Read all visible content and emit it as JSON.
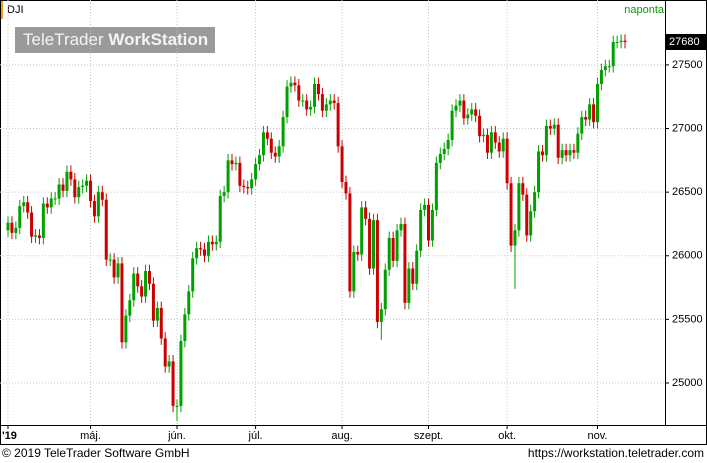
{
  "chart_data": {
    "type": "candlestick",
    "title": "DJI",
    "subtitle": "naponta",
    "watermark": {
      "brand": "TeleTrader",
      "product": "WorkStation"
    },
    "last_price": 27680,
    "up_color": "#00a000",
    "down_color": "#cc0000",
    "grid": true,
    "y_axis_side": "right",
    "ylim": [
      24670,
      28010
    ],
    "yticks": [
      25000,
      25500,
      26000,
      26500,
      27000,
      27500
    ],
    "categories": [
      "'19",
      null,
      null,
      null,
      null,
      null,
      null,
      null,
      null,
      null,
      null,
      null,
      null,
      null,
      null,
      null,
      null,
      null,
      null,
      null,
      null,
      "máj.",
      null,
      null,
      null,
      null,
      null,
      null,
      null,
      null,
      null,
      null,
      null,
      null,
      null,
      null,
      null,
      null,
      null,
      null,
      null,
      null,
      null,
      "jún.",
      null,
      null,
      null,
      null,
      null,
      null,
      null,
      null,
      null,
      null,
      null,
      null,
      null,
      null,
      null,
      null,
      null,
      null,
      null,
      "júl.",
      null,
      null,
      null,
      null,
      null,
      null,
      null,
      null,
      null,
      null,
      null,
      null,
      null,
      null,
      null,
      null,
      null,
      null,
      null,
      null,
      null,
      "aug.",
      null,
      null,
      null,
      null,
      null,
      null,
      null,
      null,
      null,
      null,
      null,
      null,
      null,
      null,
      null,
      null,
      null,
      null,
      null,
      null,
      null,
      "szept.",
      null,
      null,
      null,
      null,
      null,
      null,
      null,
      null,
      null,
      null,
      null,
      null,
      null,
      null,
      null,
      null,
      null,
      null,
      null,
      "okt.",
      null,
      null,
      null,
      null,
      null,
      null,
      null,
      null,
      null,
      null,
      null,
      null,
      null,
      null,
      null,
      null,
      null,
      null,
      null,
      null,
      null,
      null,
      "nov.",
      null,
      null,
      null,
      null,
      null,
      null,
      null
    ],
    "open": [
      26200,
      26260,
      26180,
      26220,
      26390,
      26420,
      26340,
      26150,
      26160,
      26140,
      26410,
      26380,
      26450,
      26450,
      26560,
      26510,
      26660,
      26600,
      26460,
      26540,
      26550,
      26590,
      26430,
      26310,
      26500,
      26440,
      25970,
      25970,
      25830,
      25940,
      25320,
      25530,
      25650,
      25860,
      25760,
      25680,
      25880,
      25780,
      25490,
      25590,
      25350,
      25130,
      25170,
      24820,
      24820,
      25330,
      25540,
      25720,
      25980,
      26060,
      26050,
      26000,
      26110,
      26090,
      26110,
      26470,
      26500,
      26750,
      26720,
      26730,
      26550,
      26540,
      26530,
      26600,
      26720,
      26790,
      26970,
      26920,
      26810,
      26780,
      26860,
      27090,
      27330,
      27360,
      27340,
      27220,
      27220,
      27150,
      27170,
      27350,
      27270,
      27140,
      27190,
      27220,
      27200,
      26860,
      26580,
      26490,
      25720,
      26030,
      26010,
      26380,
      26290,
      25900,
      26280,
      25480,
      25580,
      25890,
      26140,
      25960,
      26200,
      26250,
      25630,
      25900,
      25780,
      26040,
      26360,
      26400,
      26120,
      26360,
      26730,
      26800,
      26840,
      26910,
      27140,
      27180,
      27220,
      27080,
      27110,
      27150,
      27100,
      26940,
      26950,
      26810,
      26970,
      26890,
      26820,
      26920,
      26570,
      26080,
      26200,
      26570,
      26480,
      26160,
      26350,
      26500,
      26820,
      26790,
      27020,
      27000,
      27030,
      26770,
      26830,
      26790,
      26830,
      26810,
      26960,
      27090,
      27070,
      27190,
      27050,
      27350,
      27460,
      27490,
      27490,
      27680,
      27680,
      27690
    ],
    "high": [
      26310,
      26310,
      26270,
      26440,
      26470,
      26470,
      26390,
      26210,
      26210,
      26460,
      26460,
      26500,
      26500,
      26610,
      26610,
      26710,
      26710,
      26650,
      26590,
      26600,
      26640,
      26640,
      26480,
      26550,
      26550,
      26490,
      26020,
      26020,
      25990,
      25990,
      25580,
      25700,
      25910,
      25910,
      25810,
      25930,
      25930,
      25830,
      25640,
      25640,
      25400,
      25220,
      25220,
      24870,
      25380,
      25590,
      25770,
      26030,
      26110,
      26110,
      26100,
      26160,
      26160,
      26160,
      26520,
      26550,
      26800,
      26800,
      26780,
      26780,
      26600,
      26590,
      26650,
      26770,
      26840,
      27020,
      27020,
      26970,
      26860,
      26910,
      27140,
      27380,
      27410,
      27410,
      27390,
      27270,
      27270,
      27220,
      27400,
      27400,
      27320,
      27240,
      27270,
      27270,
      27250,
      26910,
      26630,
      26540,
      26080,
      26080,
      26430,
      26430,
      26340,
      26330,
      26330,
      25630,
      25940,
      26190,
      26190,
      26250,
      26300,
      26300,
      25950,
      25950,
      26090,
      26410,
      26450,
      26450,
      26410,
      26780,
      26850,
      26890,
      26960,
      27190,
      27230,
      27270,
      27270,
      27160,
      27200,
      27200,
      27150,
      27000,
      27000,
      27020,
      27020,
      26940,
      26970,
      26970,
      26620,
      26250,
      26620,
      26620,
      26530,
      26400,
      26550,
      26870,
      26870,
      27070,
      27070,
      27080,
      27080,
      26880,
      26880,
      26880,
      26880,
      27010,
      27140,
      27140,
      27240,
      27240,
      27400,
      27510,
      27540,
      27540,
      27730,
      27730,
      27740,
      27740
    ],
    "low": [
      26150,
      26130,
      26130,
      26170,
      26340,
      26290,
      26100,
      26100,
      26090,
      26090,
      26330,
      26330,
      26400,
      26400,
      26460,
      26460,
      26550,
      26410,
      26410,
      26490,
      26500,
      26380,
      26260,
      26260,
      26390,
      25920,
      25920,
      25780,
      25780,
      25270,
      25270,
      25480,
      25600,
      25710,
      25630,
      25630,
      25730,
      25440,
      25440,
      25300,
      25080,
      25080,
      24770,
      24700,
      24770,
      25280,
      25490,
      25670,
      25930,
      26000,
      25950,
      25950,
      26040,
      26040,
      26060,
      26420,
      26450,
      26670,
      26670,
      26500,
      26490,
      26480,
      26480,
      26550,
      26670,
      26740,
      26870,
      26760,
      26730,
      26730,
      26810,
      27040,
      27280,
      27290,
      27170,
      27170,
      27100,
      27100,
      27120,
      27220,
      27090,
      27090,
      27140,
      27150,
      26810,
      26530,
      26440,
      25670,
      25670,
      25960,
      25960,
      26240,
      25850,
      25850,
      25430,
      25340,
      25530,
      25840,
      25910,
      25910,
      26150,
      25580,
      25580,
      25730,
      25730,
      25990,
      26310,
      26070,
      26070,
      26310,
      26680,
      26750,
      26790,
      26860,
      27090,
      27130,
      27030,
      27030,
      27060,
      27050,
      26890,
      26890,
      26760,
      26760,
      26840,
      26770,
      26770,
      26520,
      26030,
      25740,
      26150,
      26430,
      26110,
      26110,
      26300,
      26450,
      26740,
      26740,
      26950,
      26950,
      26720,
      26720,
      26740,
      26740,
      26760,
      26760,
      26910,
      27020,
      27020,
      27000,
      27000,
      27300,
      27410,
      27440,
      27440,
      27630,
      27630,
      27630
    ],
    "close": [
      26260,
      26180,
      26220,
      26390,
      26420,
      26340,
      26150,
      26160,
      26140,
      26410,
      26380,
      26450,
      26450,
      26560,
      26510,
      26660,
      26600,
      26460,
      26540,
      26550,
      26590,
      26430,
      26310,
      26500,
      26440,
      25970,
      25970,
      25830,
      25940,
      25320,
      25530,
      25650,
      25860,
      25760,
      25680,
      25880,
      25780,
      25490,
      25590,
      25350,
      25130,
      25170,
      24820,
      24820,
      25330,
      25540,
      25720,
      25980,
      26060,
      26050,
      26000,
      26110,
      26090,
      26110,
      26470,
      26500,
      26750,
      26720,
      26730,
      26550,
      26540,
      26530,
      26600,
      26720,
      26790,
      26970,
      26920,
      26810,
      26780,
      26860,
      27090,
      27330,
      27360,
      27340,
      27220,
      27220,
      27150,
      27170,
      27350,
      27270,
      27140,
      27190,
      27220,
      27200,
      26860,
      26580,
      26490,
      25720,
      26030,
      26010,
      26380,
      26290,
      25900,
      26280,
      25480,
      25580,
      25890,
      26140,
      25960,
      26200,
      26250,
      25630,
      25900,
      25780,
      26040,
      26360,
      26400,
      26120,
      26360,
      26730,
      26800,
      26840,
      26910,
      27140,
      27180,
      27220,
      27080,
      27110,
      27150,
      27100,
      26940,
      26950,
      26810,
      26970,
      26890,
      26820,
      26920,
      26570,
      26080,
      26200,
      26570,
      26480,
      26160,
      26350,
      26500,
      26820,
      26790,
      27020,
      27000,
      27030,
      26770,
      26830,
      26790,
      26830,
      26810,
      26960,
      27090,
      27070,
      27190,
      27050,
      27350,
      27460,
      27490,
      27490,
      27680,
      27680,
      27690,
      27680
    ]
  },
  "footer": {
    "copyright": "© 2019 TeleTrader Software GmbH",
    "url": "https://workstation.teletrader.com"
  }
}
